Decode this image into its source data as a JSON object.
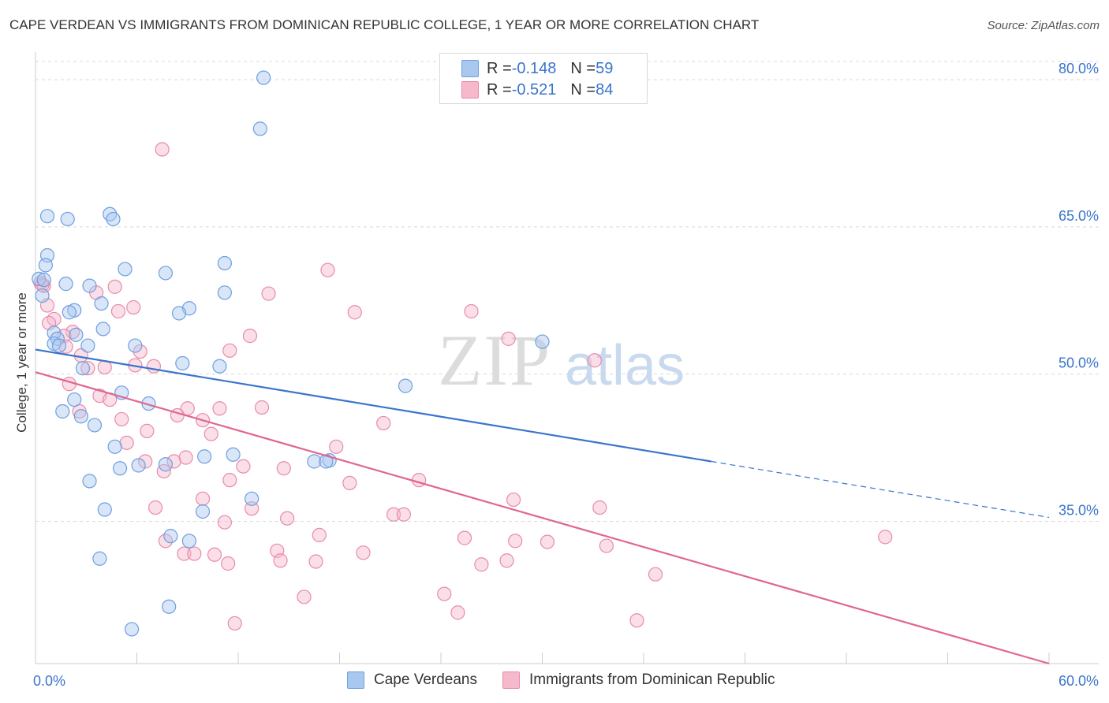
{
  "header": {
    "title": "CAPE VERDEAN VS IMMIGRANTS FROM DOMINICAN REPUBLIC COLLEGE, 1 YEAR OR MORE CORRELATION CHART",
    "source": "Source: ZipAtlas.com"
  },
  "watermark": {
    "zip": "ZIP",
    "atlas": "atlas"
  },
  "legend": {
    "rows": [
      {
        "r_label": "R = ",
        "r_value": "-0.148",
        "n_label": "N = ",
        "n_value": "59"
      },
      {
        "r_label": "R = ",
        "r_value": "-0.521",
        "n_label": "N = ",
        "n_value": "84"
      }
    ]
  },
  "bottom_legend": {
    "series1": "Cape Verdeans",
    "series2": "Immigrants from Dominican Republic"
  },
  "colors": {
    "blue_fill": "#a9c8ef",
    "blue_stroke": "#6e9fe0",
    "blue_line": "#3a74cc",
    "pink_fill": "#f5b9cb",
    "pink_stroke": "#e98aaa",
    "pink_line": "#e06690",
    "tick_text": "#3a74cc",
    "grid": "#d9d9d9"
  },
  "chart_data": {
    "type": "scatter",
    "title": "CAPE VERDEAN VS IMMIGRANTS FROM DOMINICAN REPUBLIC COLLEGE, 1 YEAR OR MORE CORRELATION CHART",
    "xlabel": "",
    "ylabel": "College, 1 year or more",
    "xlim": [
      0,
      60
    ],
    "ylim": [
      20.5,
      82.5
    ],
    "x_tick_labels": [
      "0.0%",
      "60.0%"
    ],
    "y_ticks": [
      35,
      50,
      65,
      80
    ],
    "y_tick_labels": [
      "35.0%",
      "50.0%",
      "65.0%",
      "80.0%"
    ],
    "grid": "horizontal dashed",
    "legend_position": "top-center",
    "series": [
      {
        "name": "Cape Verdeans",
        "color": "#a9c8ef",
        "trend": {
          "x": [
            0,
            40
          ],
          "y": [
            52.5,
            41.1
          ],
          "dashed_to": [
            60,
            35.4
          ]
        },
        "points": [
          [
            13.5,
            80.2
          ],
          [
            13.3,
            75.0
          ],
          [
            0.7,
            66.1
          ],
          [
            1.9,
            65.8
          ],
          [
            4.4,
            66.3
          ],
          [
            4.6,
            65.8
          ],
          [
            0.7,
            62.1
          ],
          [
            0.6,
            61.1
          ],
          [
            5.3,
            60.7
          ],
          [
            7.7,
            60.3
          ],
          [
            11.2,
            61.3
          ],
          [
            0.2,
            59.7
          ],
          [
            1.8,
            59.2
          ],
          [
            3.2,
            59.0
          ],
          [
            11.2,
            58.3
          ],
          [
            0.4,
            58.0
          ],
          [
            3.9,
            57.2
          ],
          [
            2.3,
            56.5
          ],
          [
            2.0,
            56.3
          ],
          [
            9.1,
            56.7
          ],
          [
            8.5,
            56.2
          ],
          [
            1.1,
            54.2
          ],
          [
            4.0,
            54.6
          ],
          [
            2.4,
            54.0
          ],
          [
            1.3,
            53.6
          ],
          [
            1.1,
            53.1
          ],
          [
            1.4,
            52.9
          ],
          [
            3.1,
            52.9
          ],
          [
            5.9,
            52.9
          ],
          [
            8.7,
            51.1
          ],
          [
            10.9,
            50.8
          ],
          [
            2.8,
            50.6
          ],
          [
            30.0,
            53.3
          ],
          [
            21.9,
            48.8
          ],
          [
            5.1,
            48.1
          ],
          [
            2.3,
            47.4
          ],
          [
            6.7,
            47.0
          ],
          [
            1.6,
            46.2
          ],
          [
            2.7,
            45.7
          ],
          [
            3.5,
            44.8
          ],
          [
            4.7,
            42.6
          ],
          [
            5.0,
            40.4
          ],
          [
            11.7,
            41.8
          ],
          [
            10.0,
            41.6
          ],
          [
            7.7,
            40.8
          ],
          [
            6.1,
            40.7
          ],
          [
            16.5,
            41.1
          ],
          [
            17.4,
            41.2
          ],
          [
            3.2,
            39.1
          ],
          [
            12.8,
            37.3
          ],
          [
            4.1,
            36.2
          ],
          [
            9.9,
            36.0
          ],
          [
            8.0,
            33.5
          ],
          [
            9.1,
            33.0
          ],
          [
            3.8,
            31.2
          ],
          [
            7.9,
            26.3
          ],
          [
            5.7,
            24.0
          ],
          [
            17.2,
            41.1
          ],
          [
            0.5,
            59.6
          ]
        ]
      },
      {
        "name": "Immigrants from Dominican Republic",
        "color": "#f5b9cb",
        "trend": {
          "x": [
            0,
            60
          ],
          "y": [
            50.2,
            20.5
          ]
        },
        "points": [
          [
            7.5,
            72.9
          ],
          [
            17.3,
            60.6
          ],
          [
            0.3,
            59.3
          ],
          [
            0.5,
            59.0
          ],
          [
            4.7,
            58.9
          ],
          [
            3.6,
            58.3
          ],
          [
            13.8,
            58.2
          ],
          [
            0.7,
            57.0
          ],
          [
            5.8,
            56.8
          ],
          [
            4.9,
            56.4
          ],
          [
            18.9,
            56.3
          ],
          [
            25.8,
            56.4
          ],
          [
            1.1,
            55.6
          ],
          [
            0.8,
            55.2
          ],
          [
            2.2,
            54.3
          ],
          [
            1.7,
            53.9
          ],
          [
            12.7,
            53.9
          ],
          [
            28.0,
            53.6
          ],
          [
            1.8,
            52.8
          ],
          [
            6.2,
            52.3
          ],
          [
            11.5,
            52.4
          ],
          [
            2.7,
            51.9
          ],
          [
            33.1,
            51.4
          ],
          [
            5.9,
            50.9
          ],
          [
            7.0,
            50.8
          ],
          [
            4.1,
            50.7
          ],
          [
            3.1,
            50.6
          ],
          [
            2.0,
            49.0
          ],
          [
            3.8,
            47.8
          ],
          [
            4.4,
            47.4
          ],
          [
            9.0,
            46.5
          ],
          [
            10.9,
            46.5
          ],
          [
            13.4,
            46.6
          ],
          [
            2.6,
            46.2
          ],
          [
            8.4,
            45.8
          ],
          [
            5.1,
            45.4
          ],
          [
            9.9,
            45.3
          ],
          [
            20.6,
            45.0
          ],
          [
            6.6,
            44.2
          ],
          [
            10.4,
            43.9
          ],
          [
            5.4,
            43.0
          ],
          [
            17.8,
            42.6
          ],
          [
            8.9,
            41.5
          ],
          [
            6.5,
            41.1
          ],
          [
            8.2,
            41.1
          ],
          [
            12.3,
            40.6
          ],
          [
            14.7,
            40.4
          ],
          [
            7.6,
            40.1
          ],
          [
            11.5,
            39.2
          ],
          [
            18.6,
            38.9
          ],
          [
            22.7,
            39.2
          ],
          [
            9.9,
            37.3
          ],
          [
            28.3,
            37.2
          ],
          [
            7.1,
            36.4
          ],
          [
            12.8,
            36.3
          ],
          [
            33.4,
            36.4
          ],
          [
            21.2,
            35.7
          ],
          [
            21.8,
            35.7
          ],
          [
            14.9,
            35.3
          ],
          [
            11.2,
            34.9
          ],
          [
            16.8,
            33.6
          ],
          [
            50.3,
            33.4
          ],
          [
            25.4,
            33.3
          ],
          [
            28.4,
            33.0
          ],
          [
            30.3,
            32.9
          ],
          [
            7.7,
            33.0
          ],
          [
            33.8,
            32.5
          ],
          [
            14.3,
            32.0
          ],
          [
            19.4,
            31.8
          ],
          [
            8.8,
            31.7
          ],
          [
            9.4,
            31.7
          ],
          [
            10.6,
            31.6
          ],
          [
            11.4,
            30.7
          ],
          [
            14.5,
            31.0
          ],
          [
            16.6,
            30.9
          ],
          [
            26.4,
            30.6
          ],
          [
            27.9,
            31.0
          ],
          [
            36.7,
            29.6
          ],
          [
            24.2,
            27.6
          ],
          [
            15.9,
            27.3
          ],
          [
            25.0,
            25.7
          ],
          [
            35.6,
            24.9
          ],
          [
            11.8,
            24.6
          ],
          [
            0.4,
            59.1
          ]
        ]
      }
    ]
  }
}
